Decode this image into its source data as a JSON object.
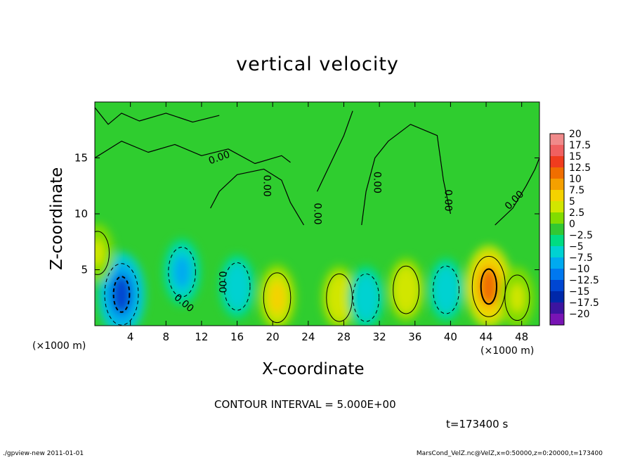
{
  "chart_data": {
    "type": "heatmap",
    "title": "vertical velocity",
    "xlabel": "X-coordinate",
    "ylabel": "Z-coordinate",
    "x_unit_label": "(×1000 m)",
    "xlim": [
      0,
      50
    ],
    "ylim": [
      0,
      20
    ],
    "x_ticks": [
      4,
      8,
      12,
      16,
      20,
      24,
      28,
      32,
      36,
      40,
      44,
      48
    ],
    "y_ticks": [
      5,
      10,
      15
    ],
    "colorbar": {
      "levels": [
        20,
        17.5,
        15,
        12.5,
        10,
        7.5,
        5,
        2.5,
        0,
        -2.5,
        -5,
        -7.5,
        -10,
        -12.5,
        -15,
        -17.5,
        -20
      ],
      "labels": [
        "20",
        "17.5",
        "15",
        "12.5",
        "10",
        "7.5",
        "5",
        "2.5",
        "0",
        "−2.5",
        "−5",
        "−7.5",
        "−10",
        "−12.5",
        "−15",
        "−17.5",
        "−20"
      ],
      "colors": [
        "#f08a8a",
        "#f06060",
        "#f03c1e",
        "#f06e00",
        "#f5a000",
        "#f5d200",
        "#d2e600",
        "#82dc00",
        "#32c832",
        "#00dc82",
        "#00d2d2",
        "#00aaf0",
        "#0078f0",
        "#0046d2",
        "#0028aa",
        "#3c14a0",
        "#7814b4"
      ]
    },
    "contour_labels": [
      "0.00",
      "0.00",
      "0.00",
      "0.00",
      "0.00",
      "0.00",
      "0.00",
      "0.00"
    ],
    "contour_interval": "CONTOUR INTERVAL = 5.000E+00",
    "features": [
      {
        "x": 3,
        "z": 2.8,
        "value": -12.5
      },
      {
        "x": 9.8,
        "z": 4.8,
        "value": -7
      },
      {
        "x": 16,
        "z": 3.5,
        "value": -6
      },
      {
        "x": 20.5,
        "z": 2.5,
        "value": 7
      },
      {
        "x": 27.5,
        "z": 2.5,
        "value": 6
      },
      {
        "x": 30.5,
        "z": 2.5,
        "value": -6
      },
      {
        "x": 35,
        "z": 3.2,
        "value": 6
      },
      {
        "x": 39.5,
        "z": 3.2,
        "value": -6
      },
      {
        "x": 44.3,
        "z": 3.5,
        "value": 12
      },
      {
        "x": 47.5,
        "z": 2.5,
        "value": 5
      },
      {
        "x": 0.3,
        "z": 6.5,
        "value": 4
      }
    ]
  },
  "annotations": {
    "time": "t=173400 s",
    "footer_left": "./gpview-new   2011-01-01",
    "footer_right": "MarsCond_VelZ.nc@VelZ,x=0:50000,z=0:20000,t=173400"
  }
}
